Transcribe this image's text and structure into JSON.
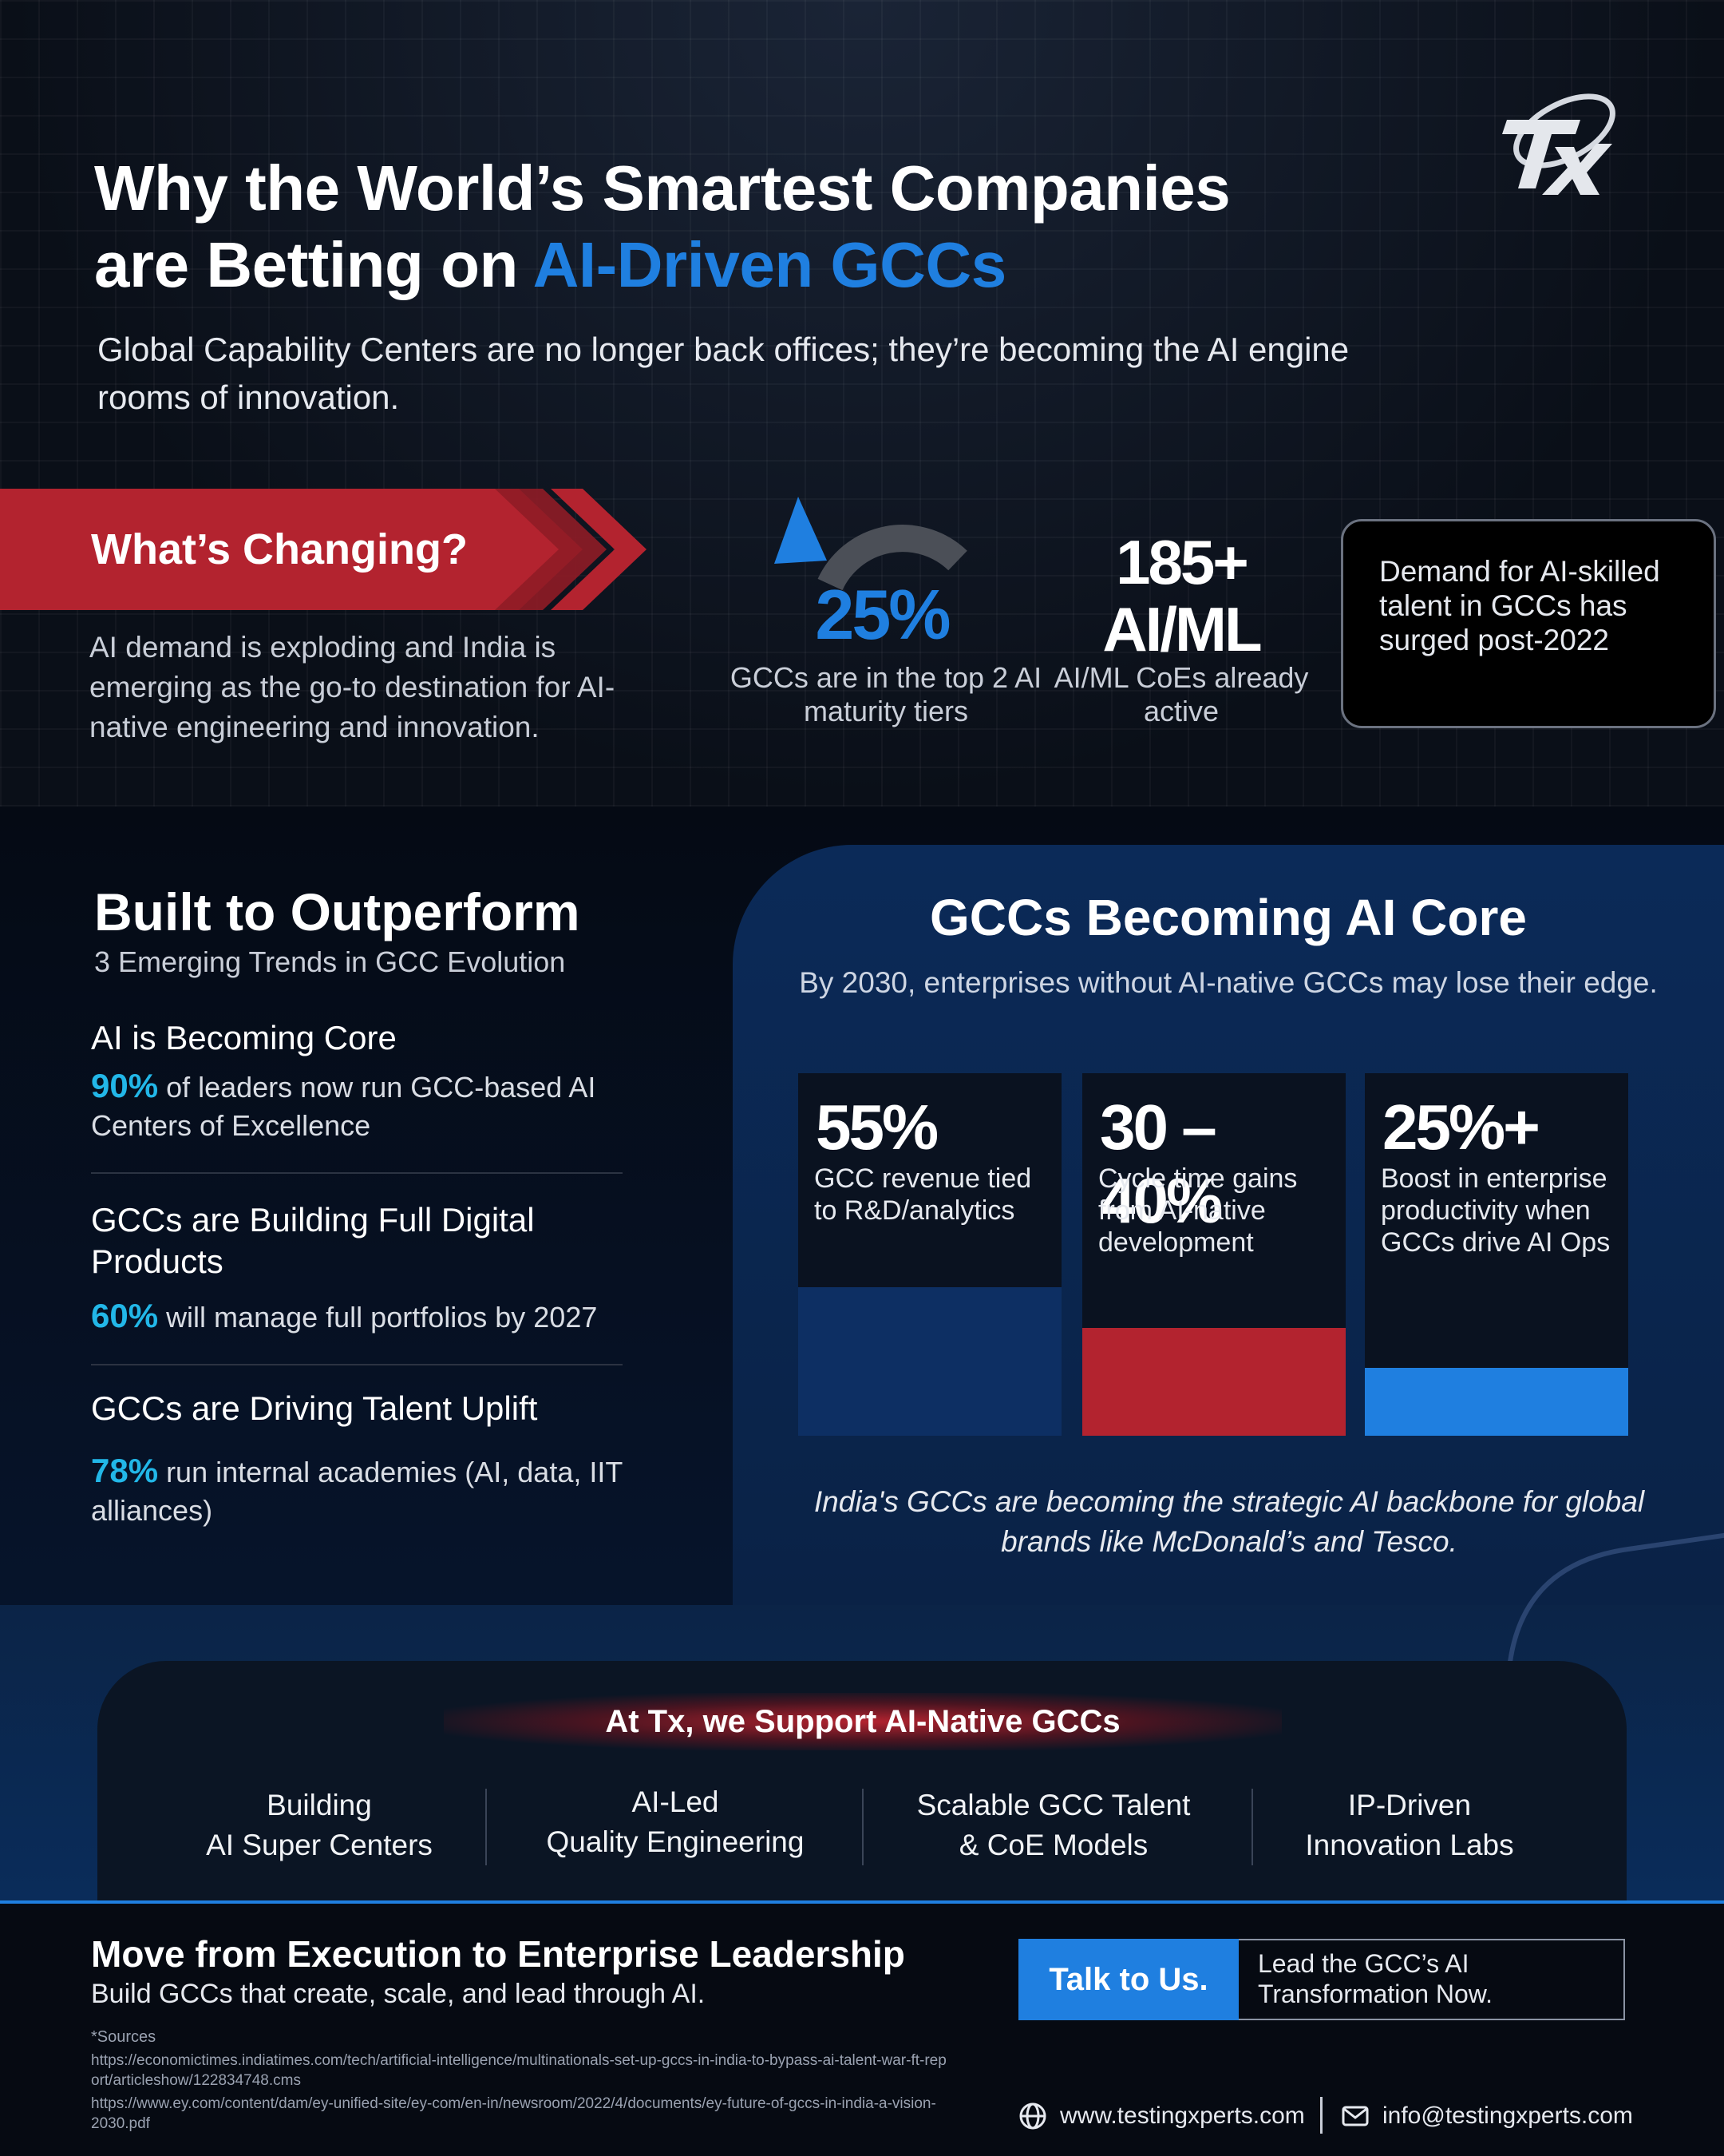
{
  "header": {
    "title_line1": "Why the World’s Smartest Companies",
    "title_line2_prefix": "are Betting on ",
    "title_line2_accent": "AI-Driven GCCs",
    "subtitle": "Global Capability Centers are no longer back offices; they’re becoming the AI engine rooms of innovation."
  },
  "whats_changing": {
    "label": "What’s Changing?",
    "description": "AI demand is exploding and India is emerging as the go-to destination for AI-native engineering and innovation."
  },
  "stats": {
    "gcc_share": {
      "value": "25%",
      "caption": "GCCs are in the top 2 AI maturity tiers"
    },
    "aiml": {
      "value": "185+ AI/ML",
      "caption": "AI/ML CoEs already active"
    },
    "demand_text": "Demand for AI-skilled talent in GCCs has surged post-2022"
  },
  "built_to_outperform": {
    "title": "Built to Outperform",
    "subtitle": "3 Emerging Trends in GCC Evolution",
    "trends": [
      {
        "title": "AI is Becoming Core",
        "pct": "90%",
        "desc": "of leaders now run GCC-based AI Centers of Excellence"
      },
      {
        "title": "GCCs are Building Full Digital Products",
        "pct": "60%",
        "desc": "will manage full portfolios by 2027"
      },
      {
        "title": "GCCs are Driving Talent Uplift",
        "pct": "78%",
        "desc": "run internal academies (AI, data, IIT alliances)"
      }
    ]
  },
  "ai_core": {
    "title": "GCCs Becoming AI Core",
    "subtitle": "By 2030, enterprises without AI-native GCCs may lose their edge.",
    "columns": [
      {
        "value": "55%",
        "caption": "GCC revenue tied to R&D/analytics",
        "fill_fraction": 0.55,
        "color": "#0d2f63"
      },
      {
        "value": "30 – 40%",
        "caption": "Cycle time gains from AI-native development",
        "fill_fraction": 0.4,
        "color": "#b3232f"
      },
      {
        "value": "25%+",
        "caption": "Boost in enterprise productivity when GCCs drive AI Ops",
        "fill_fraction": 0.25,
        "color": "#1f7fe0"
      }
    ],
    "note": "India's GCCs are becoming the strategic AI backbone for global brands like McDonald’s and Tesco."
  },
  "support": {
    "title": "At Tx, we Support AI-Native GCCs",
    "items": [
      {
        "line1": "Building",
        "line2": "AI Super Centers"
      },
      {
        "line1": "AI-Led",
        "line2": "Quality Engineering"
      },
      {
        "line1": "Scalable GCC Talent",
        "line2": "& CoE Models"
      },
      {
        "line1": "IP-Driven",
        "line2": "Innovation Labs"
      }
    ]
  },
  "footer": {
    "title": "Move from Execution to Enterprise Leadership",
    "subtitle": "Build GCCs that create, scale, and lead through AI.",
    "cta_button": "Talk to Us.",
    "cta_text": "Lead the GCC’s AI Transformation Now.",
    "sources_label": "*Sources",
    "sources": [
      "https://economictimes.indiatimes.com/tech/artificial-intelligence/multinationals-set-up-gccs-in-india-to-bypass-ai-talent-war-ft-report/articleshow/122834748.cms",
      "https://www.ey.com/content/dam/ey-unified-site/ey-com/en-in/newsroom/2022/4/documents/ey-future-of-gccs-in-india-a-vision-2030.pdf"
    ],
    "website": "www.testingxperts.com",
    "email": "info@testingxperts.com"
  },
  "colors": {
    "accent_blue": "#1f7fe0",
    "accent_red": "#b3232f",
    "accent_cyan": "#22b7e8"
  },
  "icons": {
    "logo": "tx-logo",
    "web": "globe-icon",
    "mail": "mail-icon",
    "gauge": "gauge-icon"
  }
}
